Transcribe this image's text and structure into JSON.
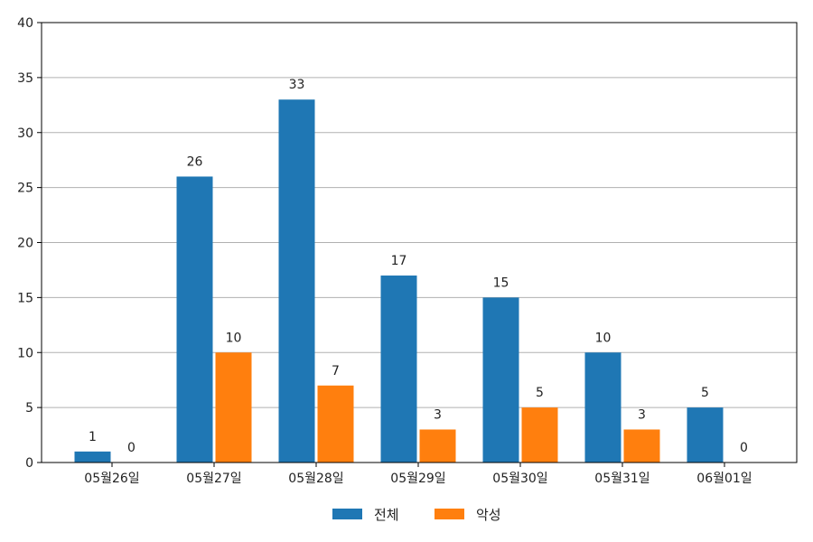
{
  "chart_data": {
    "type": "bar",
    "title": "",
    "xlabel": "",
    "ylabel": "",
    "categories": [
      "05월26일",
      "05월27일",
      "05월28일",
      "05월29일",
      "05월30일",
      "05월31일",
      "06월01일"
    ],
    "series": [
      {
        "name": "전체",
        "color": "#1f77b4",
        "values": [
          1,
          26,
          33,
          17,
          15,
          10,
          5
        ]
      },
      {
        "name": "악성",
        "color": "#ff7f0e",
        "values": [
          0,
          10,
          7,
          3,
          5,
          3,
          0
        ]
      }
    ],
    "ylim": [
      0,
      40
    ],
    "yticks": [
      0,
      5,
      10,
      15,
      20,
      25,
      30,
      35,
      40
    ],
    "grid": "y",
    "legend": "bottom-center",
    "data_labels": true
  }
}
